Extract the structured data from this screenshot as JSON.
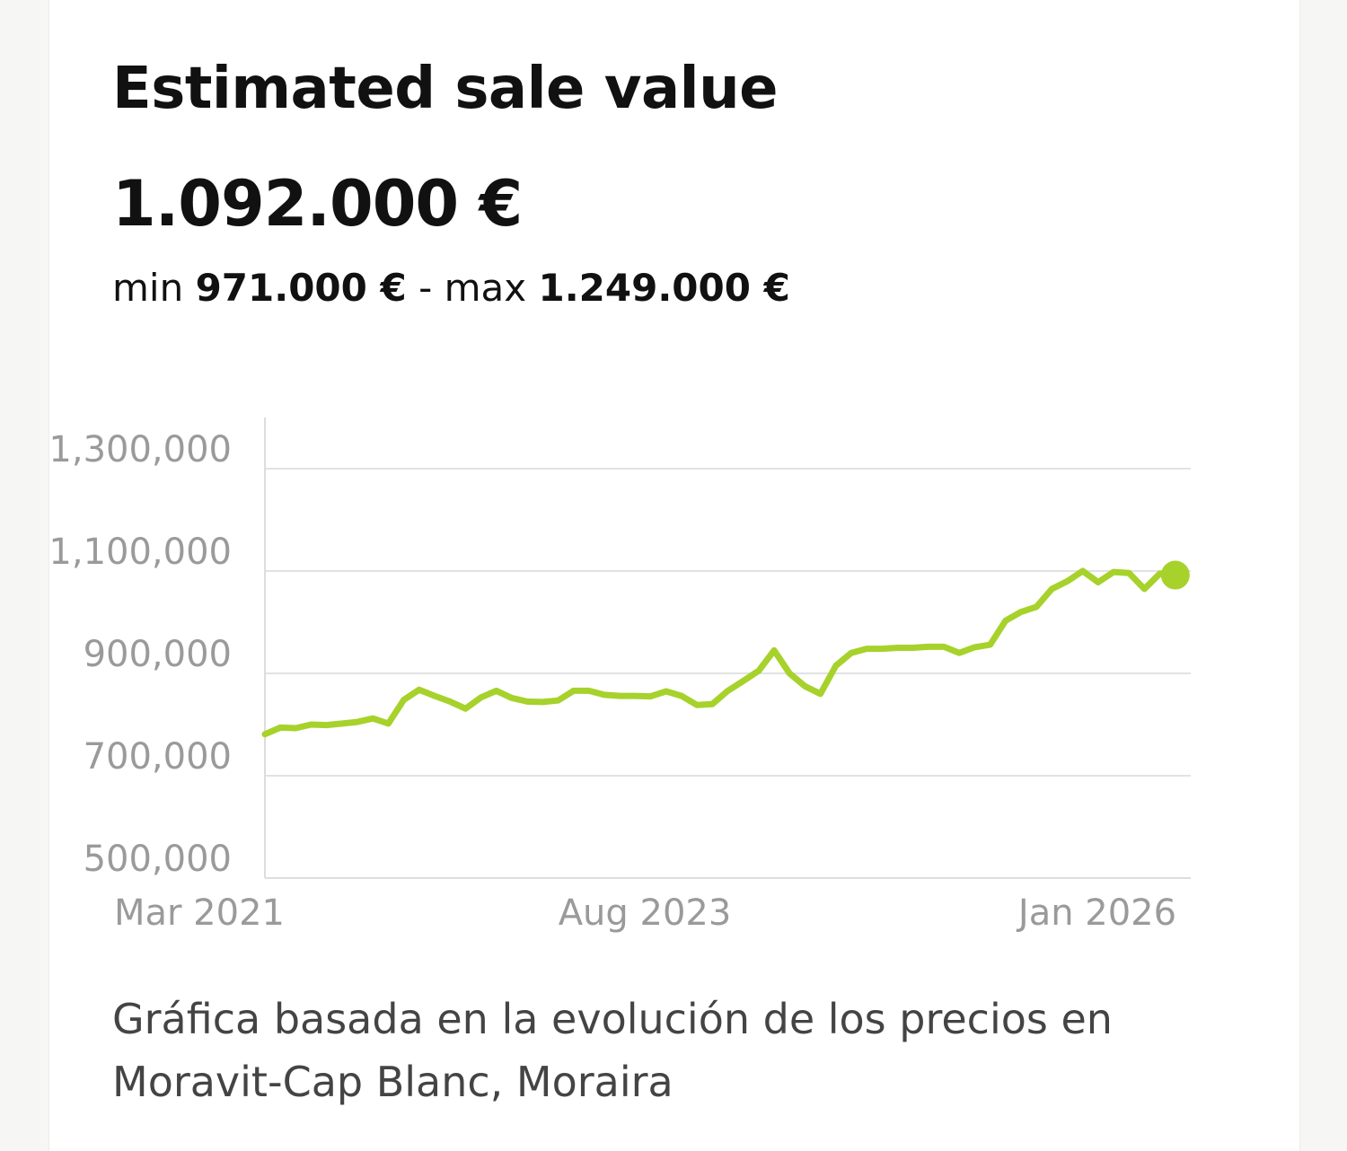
{
  "card": {
    "title": "Estimated sale value",
    "estimate": "1.092.000 €",
    "range": {
      "min_label": "min",
      "min_value": "971.000 €",
      "separator": "-",
      "max_label": "max",
      "max_value": "1.249.000 €"
    },
    "caption_line1": "Gráfica basada en la evolución de los precios en",
    "caption_line2": "Moravit-Cap Blanc, Moraira"
  },
  "colors": {
    "line": "#a6d22b",
    "grid": "#e2e2e2",
    "axis": "#dddddd",
    "tick_text": "#9a9a9a"
  },
  "chart_data": {
    "type": "line",
    "y_ticks": [
      "1,300,000",
      "1,100,000",
      "900,000",
      "700,000",
      "500,000"
    ],
    "x_ticks": [
      "Mar 2021",
      "Aug 2023",
      "Jan 2026"
    ],
    "ylim": [
      500000,
      1400000
    ],
    "xlim": [
      "2021-03",
      "2026-03"
    ],
    "grid": true,
    "series": [
      {
        "points": [
          [
            "2021-03",
            781000
          ],
          [
            "2021-04",
            794000
          ],
          [
            "2021-05",
            793000
          ],
          [
            "2021-06",
            800000
          ],
          [
            "2021-07",
            799000
          ],
          [
            "2021-08",
            802000
          ],
          [
            "2021-09",
            805000
          ],
          [
            "2021-10",
            812000
          ],
          [
            "2021-11",
            802000
          ],
          [
            "2021-12",
            848000
          ],
          [
            "2022-01",
            868000
          ],
          [
            "2022-02",
            856000
          ],
          [
            "2022-03",
            845000
          ],
          [
            "2022-04",
            831000
          ],
          [
            "2022-05",
            853000
          ],
          [
            "2022-06",
            866000
          ],
          [
            "2022-07",
            852000
          ],
          [
            "2022-08",
            845000
          ],
          [
            "2022-09",
            844000
          ],
          [
            "2022-10",
            847000
          ],
          [
            "2022-11",
            866000
          ],
          [
            "2022-12",
            866000
          ],
          [
            "2023-01",
            858000
          ],
          [
            "2023-02",
            856000
          ],
          [
            "2023-03",
            856000
          ],
          [
            "2023-04",
            855000
          ],
          [
            "2023-05",
            865000
          ],
          [
            "2023-06",
            856000
          ],
          [
            "2023-07",
            838000
          ],
          [
            "2023-08",
            840000
          ],
          [
            "2023-09",
            866000
          ],
          [
            "2023-10",
            885000
          ],
          [
            "2023-11",
            905000
          ],
          [
            "2023-12",
            945000
          ],
          [
            "2024-01",
            900000
          ],
          [
            "2024-02",
            875000
          ],
          [
            "2024-03",
            860000
          ],
          [
            "2024-04",
            915000
          ],
          [
            "2024-05",
            940000
          ],
          [
            "2024-06",
            948000
          ],
          [
            "2024-07",
            948000
          ],
          [
            "2024-08",
            950000
          ],
          [
            "2024-09",
            950000
          ],
          [
            "2024-10",
            952000
          ],
          [
            "2024-11",
            952000
          ],
          [
            "2024-12",
            940000
          ],
          [
            "2025-01",
            951000
          ],
          [
            "2025-02",
            956000
          ],
          [
            "2025-03",
            1003000
          ],
          [
            "2025-04",
            1020000
          ],
          [
            "2025-05",
            1030000
          ],
          [
            "2025-06",
            1065000
          ],
          [
            "2025-07",
            1080000
          ],
          [
            "2025-08",
            1100000
          ],
          [
            "2025-09",
            1078000
          ],
          [
            "2025-10",
            1098000
          ],
          [
            "2025-11",
            1096000
          ],
          [
            "2025-12",
            1065000
          ],
          [
            "2026-01",
            1095000
          ],
          [
            "2026-02",
            1092000
          ]
        ]
      }
    ]
  }
}
